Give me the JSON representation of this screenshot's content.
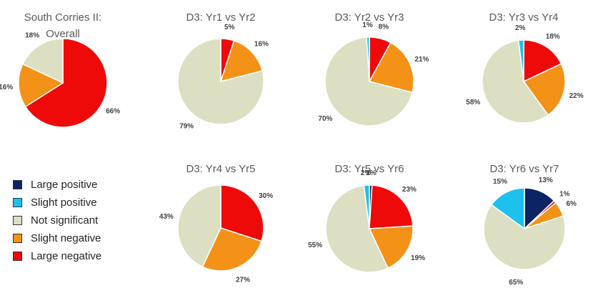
{
  "categories": [
    "Large positive",
    "Slight positive",
    "Not significant",
    "Slight negative",
    "Large negative"
  ],
  "colors": {
    "Large positive": "#0c2461",
    "Slight positive": "#1ec0ee",
    "Not significant": "#dcdfc1",
    "Slight negative": "#f39217",
    "Large negative": "#ef0a0a"
  },
  "chart_data": [
    {
      "type": "pie",
      "title": "South Corries II:",
      "subtitle": "Overall",
      "slices": [
        {
          "category": "Large negative",
          "value": 66,
          "label": "66%"
        },
        {
          "category": "Slight negative",
          "value": 16,
          "label": "16%"
        },
        {
          "category": "Not significant",
          "value": 18,
          "label": "18%"
        }
      ]
    },
    {
      "type": "pie",
      "title": "D3: Yr1 vs Yr2",
      "slices": [
        {
          "category": "Large negative",
          "value": 5,
          "label": "5%"
        },
        {
          "category": "Slight negative",
          "value": 16,
          "label": "16%"
        },
        {
          "category": "Not significant",
          "value": 79,
          "label": "79%"
        }
      ]
    },
    {
      "type": "pie",
      "title": "D3: Yr2 vs Yr3",
      "slices": [
        {
          "category": "Large negative",
          "value": 8,
          "label": "8%"
        },
        {
          "category": "Slight negative",
          "value": 21,
          "label": "21%"
        },
        {
          "category": "Not significant",
          "value": 70,
          "label": "70%"
        },
        {
          "category": "Slight positive",
          "value": 1,
          "label": "1%"
        }
      ]
    },
    {
      "type": "pie",
      "title": "D3: Yr3 vs Yr4",
      "slices": [
        {
          "category": "Large negative",
          "value": 18,
          "label": "18%"
        },
        {
          "category": "Slight negative",
          "value": 22,
          "label": "22%"
        },
        {
          "category": "Not significant",
          "value": 58,
          "label": "58%"
        },
        {
          "category": "Slight positive",
          "value": 2,
          "label": "2%"
        }
      ]
    },
    {
      "type": "pie",
      "title": "D3: Yr4 vs Yr5",
      "slices": [
        {
          "category": "Large negative",
          "value": 30,
          "label": "30%"
        },
        {
          "category": "Slight negative",
          "value": 27,
          "label": "27%"
        },
        {
          "category": "Not significant",
          "value": 43,
          "label": "43%"
        }
      ]
    },
    {
      "type": "pie",
      "title": "D3: Yr5 vs Yr6",
      "slices": [
        {
          "category": "Large negative",
          "value": 23,
          "label": "23%"
        },
        {
          "category": "Slight negative",
          "value": 19,
          "label": "19%"
        },
        {
          "category": "Not significant",
          "value": 55,
          "label": "55%"
        },
        {
          "category": "Slight positive",
          "value": 2,
          "label": "2%"
        },
        {
          "category": "Large positive",
          "value": 1,
          "label": "1%"
        }
      ]
    },
    {
      "type": "pie",
      "title": "D3: Yr6 vs Yr7",
      "slices": [
        {
          "category": "Large negative",
          "value": 1,
          "label": "1%"
        },
        {
          "category": "Slight negative",
          "value": 6,
          "label": "6%"
        },
        {
          "category": "Not significant",
          "value": 65,
          "label": "65%"
        },
        {
          "category": "Slight positive",
          "value": 15,
          "label": "15%"
        },
        {
          "category": "Large positive",
          "value": 13,
          "label": "13%"
        }
      ]
    }
  ]
}
